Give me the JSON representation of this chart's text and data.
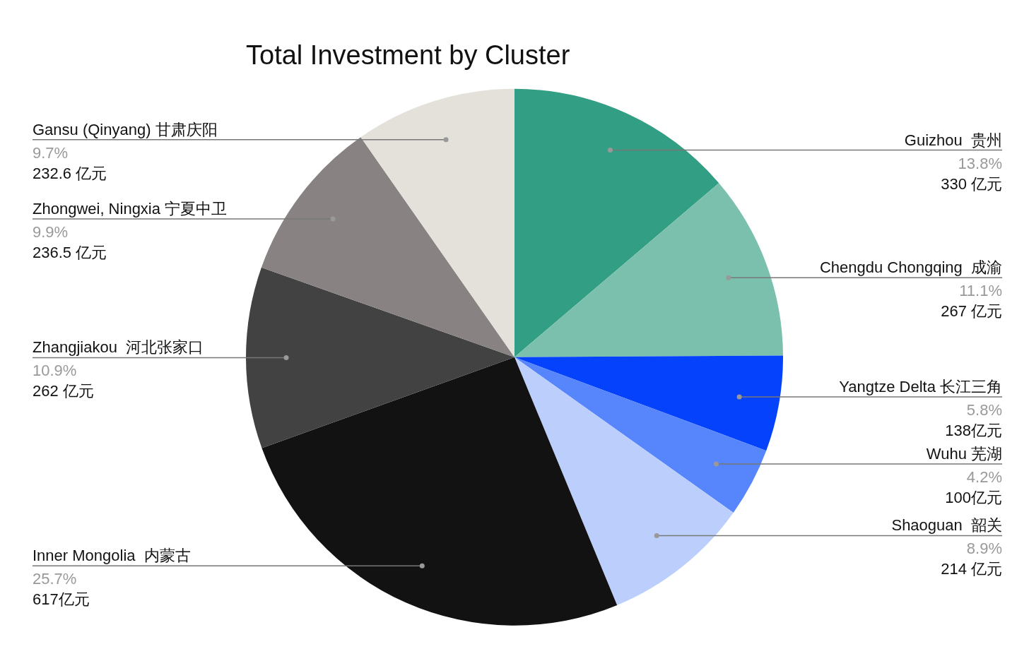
{
  "chart_data": {
    "type": "pie",
    "title": "Total Investment by Cluster",
    "categories": [
      "Guizhou  贵州",
      "Chengdu Chongqing  成渝",
      "Yangtze Delta 长江三角",
      "Wuhu 芜湖",
      "Shaoguan  韶关",
      "Inner Mongolia  内蒙古",
      "Zhangjiakou  河北张家口",
      "Zhongwei, Ningxia 宁夏中卫",
      "Gansu (Qinyang) 甘肃庆阳"
    ],
    "values": [
      330,
      267,
      138,
      100,
      214,
      617,
      262,
      236.5,
      232.6
    ],
    "colors": [
      "#329e84",
      "#7bc0ad",
      "#0442fc",
      "#5685fc",
      "#bccffc",
      "#121212",
      "#424242",
      "#888382",
      "#e3e1da"
    ],
    "value_labels": [
      "13.8%\n330 亿元",
      "11.1%\n267 亿元",
      "5.8%\n138亿元",
      "4.2%\n100亿元",
      "8.9%\n214 亿元",
      "25.7%\n617亿元",
      "10.9%\n262 亿元",
      "9.9%\n236.5 亿元",
      "9.7%\n232.6 亿元"
    ],
    "legend": false
  }
}
